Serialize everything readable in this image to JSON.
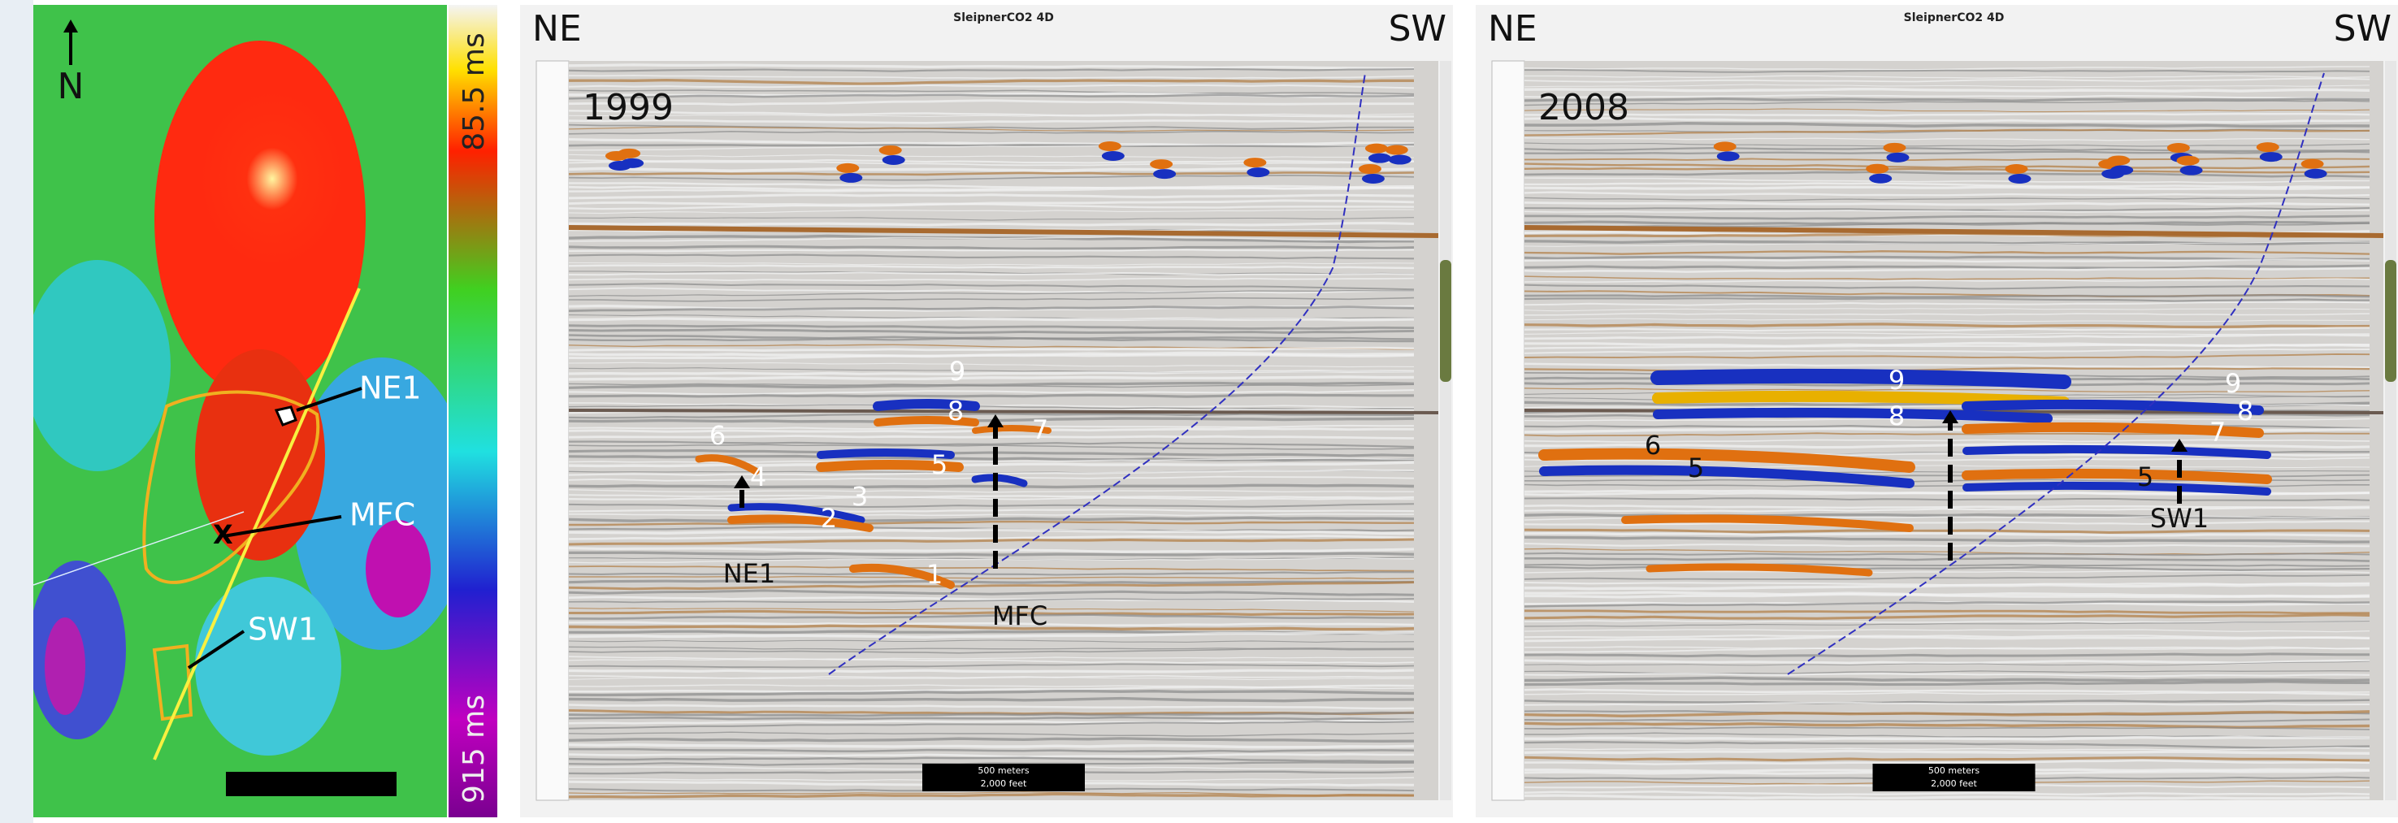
{
  "map": {
    "north": "N",
    "colorbar_top": "85.5 ms",
    "colorbar_bottom": "915 ms",
    "labels": [
      "NE1",
      "MFC",
      "SW1"
    ]
  },
  "sections": [
    {
      "title": "SleipnerCO2 4D",
      "year": "1999",
      "left": "NE",
      "right": "SW",
      "labels": [
        "9",
        "8",
        "7",
        "6",
        "5",
        "4",
        "3",
        "2",
        "1",
        "NE1",
        "MFC"
      ],
      "scale_bar": [
        "500 meters",
        "2,000 feet"
      ]
    },
    {
      "title": "SleipnerCO2 4D",
      "year": "2008",
      "left": "NE",
      "right": "SW",
      "labels": [
        "9",
        "8",
        "9",
        "8",
        "7",
        "6",
        "5",
        "5",
        "SW1"
      ],
      "scale_bar": [
        "500 meters",
        "2,000 feet"
      ]
    }
  ]
}
